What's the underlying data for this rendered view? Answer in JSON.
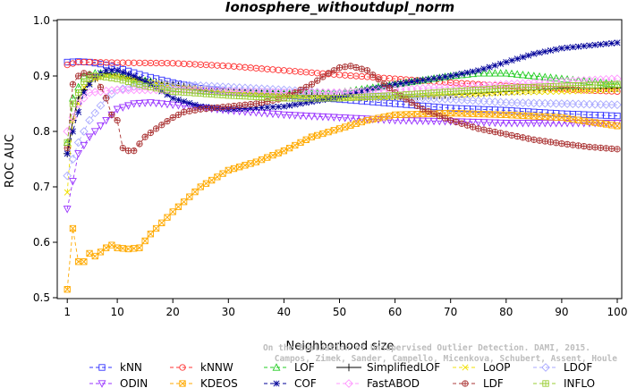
{
  "chart_data": {
    "type": "line",
    "title": "Ionosphere_withoutdupl_norm",
    "xlabel": "Neighborhood size",
    "ylabel": "ROC AUC",
    "xlim": [
      0,
      100
    ],
    "ylim": [
      0.5,
      1.0
    ],
    "xticks": [
      1,
      10,
      20,
      30,
      40,
      50,
      60,
      70,
      80,
      90,
      100
    ],
    "yticks": [
      0.5,
      0.6,
      0.7,
      0.8,
      0.9,
      1.0
    ],
    "x_tick_labels": [
      "1",
      "10",
      "20",
      "30",
      "40",
      "50",
      "60",
      "70",
      "80",
      "90",
      "100"
    ],
    "y_tick_labels": [
      "0.5",
      "0.6",
      "0.7",
      "0.8",
      "0.9",
      "1.0"
    ],
    "legend_position": "bottom",
    "watermark": [
      "Campos, Zimek, Sander, Campello, Micenkova, Schubert, Assent, Houle",
      "On the Evaluation of Unsupervised Outlier Detection. DAMI, 2015."
    ],
    "series": [
      {
        "name": "kNN",
        "color": "#3333ff",
        "dash": "dashed",
        "marker": "square",
        "points": [
          [
            1,
            0.925
          ],
          [
            3,
            0.926
          ],
          [
            5,
            0.925
          ],
          [
            8,
            0.92
          ],
          [
            10,
            0.915
          ],
          [
            15,
            0.9
          ],
          [
            20,
            0.888
          ],
          [
            25,
            0.878
          ],
          [
            30,
            0.872
          ],
          [
            40,
            0.865
          ],
          [
            50,
            0.858
          ],
          [
            60,
            0.85
          ],
          [
            70,
            0.842
          ],
          [
            80,
            0.838
          ],
          [
            90,
            0.832
          ],
          [
            100,
            0.828
          ]
        ]
      },
      {
        "name": "kNNW",
        "color": "#ff3333",
        "dash": "dashed",
        "marker": "circle",
        "points": [
          [
            1,
            0.92
          ],
          [
            3,
            0.925
          ],
          [
            5,
            0.925
          ],
          [
            10,
            0.924
          ],
          [
            20,
            0.923
          ],
          [
            30,
            0.918
          ],
          [
            40,
            0.91
          ],
          [
            50,
            0.902
          ],
          [
            60,
            0.895
          ],
          [
            70,
            0.888
          ],
          [
            80,
            0.882
          ],
          [
            90,
            0.876
          ],
          [
            100,
            0.872
          ]
        ]
      },
      {
        "name": "LOF",
        "color": "#22cc22",
        "dash": "dashed",
        "marker": "triangle-up",
        "points": [
          [
            1,
            0.78
          ],
          [
            2,
            0.86
          ],
          [
            4,
            0.9
          ],
          [
            6,
            0.905
          ],
          [
            8,
            0.905
          ],
          [
            10,
            0.905
          ],
          [
            13,
            0.895
          ],
          [
            16,
            0.89
          ],
          [
            20,
            0.878
          ],
          [
            25,
            0.873
          ],
          [
            30,
            0.87
          ],
          [
            40,
            0.868
          ],
          [
            50,
            0.87
          ],
          [
            60,
            0.885
          ],
          [
            70,
            0.9
          ],
          [
            75,
            0.905
          ],
          [
            80,
            0.905
          ],
          [
            90,
            0.895
          ],
          [
            100,
            0.885
          ]
        ]
      },
      {
        "name": "SimplifiedLOF",
        "color": "#000000",
        "dash": "solid",
        "marker": "plus",
        "points": [
          [
            1,
            0.76
          ],
          [
            2,
            0.82
          ],
          [
            3,
            0.86
          ],
          [
            5,
            0.89
          ],
          [
            8,
            0.905
          ],
          [
            10,
            0.9
          ],
          [
            15,
            0.89
          ],
          [
            20,
            0.885
          ],
          [
            25,
            0.875
          ],
          [
            30,
            0.87
          ],
          [
            40,
            0.866
          ],
          [
            50,
            0.862
          ],
          [
            60,
            0.862
          ],
          [
            70,
            0.866
          ],
          [
            80,
            0.872
          ],
          [
            90,
            0.878
          ],
          [
            100,
            0.878
          ]
        ]
      },
      {
        "name": "LoOP",
        "color": "#f0e000",
        "dash": "dashed",
        "marker": "x",
        "points": [
          [
            1,
            0.69
          ],
          [
            2,
            0.82
          ],
          [
            4,
            0.88
          ],
          [
            6,
            0.895
          ],
          [
            8,
            0.9
          ],
          [
            10,
            0.9
          ],
          [
            15,
            0.89
          ],
          [
            20,
            0.882
          ],
          [
            30,
            0.872
          ],
          [
            40,
            0.865
          ],
          [
            50,
            0.86
          ],
          [
            60,
            0.862
          ],
          [
            70,
            0.865
          ],
          [
            80,
            0.87
          ],
          [
            90,
            0.872
          ],
          [
            100,
            0.875
          ]
        ]
      },
      {
        "name": "LDOF",
        "color": "#aaaaff",
        "dash": "dashed",
        "marker": "diamond",
        "points": [
          [
            1,
            0.72
          ],
          [
            3,
            0.78
          ],
          [
            5,
            0.82
          ],
          [
            8,
            0.86
          ],
          [
            10,
            0.875
          ],
          [
            15,
            0.885
          ],
          [
            20,
            0.885
          ],
          [
            30,
            0.88
          ],
          [
            40,
            0.875
          ],
          [
            50,
            0.868
          ],
          [
            60,
            0.862
          ],
          [
            70,
            0.858
          ],
          [
            80,
            0.852
          ],
          [
            90,
            0.85
          ],
          [
            100,
            0.848
          ]
        ]
      },
      {
        "name": "ODIN",
        "color": "#9933ff",
        "dash": "dashed",
        "marker": "triangle-down",
        "points": [
          [
            1,
            0.66
          ],
          [
            2,
            0.71
          ],
          [
            3,
            0.76
          ],
          [
            5,
            0.79
          ],
          [
            8,
            0.82
          ],
          [
            10,
            0.84
          ],
          [
            13,
            0.85
          ],
          [
            16,
            0.852
          ],
          [
            20,
            0.848
          ],
          [
            30,
            0.838
          ],
          [
            40,
            0.83
          ],
          [
            50,
            0.825
          ],
          [
            60,
            0.82
          ],
          [
            70,
            0.818
          ],
          [
            80,
            0.815
          ],
          [
            90,
            0.815
          ],
          [
            100,
            0.815
          ]
        ]
      },
      {
        "name": "KDEOS",
        "color": "#ffaa00",
        "dash": "dashed",
        "marker": "square-x",
        "points": [
          [
            1,
            0.515
          ],
          [
            2,
            0.625
          ],
          [
            3,
            0.565
          ],
          [
            4,
            0.565
          ],
          [
            5,
            0.58
          ],
          [
            6,
            0.575
          ],
          [
            8,
            0.59
          ],
          [
            9,
            0.595
          ],
          [
            10,
            0.59
          ],
          [
            12,
            0.588
          ],
          [
            14,
            0.59
          ],
          [
            16,
            0.615
          ],
          [
            20,
            0.655
          ],
          [
            25,
            0.7
          ],
          [
            30,
            0.73
          ],
          [
            35,
            0.745
          ],
          [
            40,
            0.765
          ],
          [
            45,
            0.79
          ],
          [
            50,
            0.805
          ],
          [
            55,
            0.82
          ],
          [
            60,
            0.83
          ],
          [
            70,
            0.833
          ],
          [
            80,
            0.83
          ],
          [
            90,
            0.825
          ],
          [
            100,
            0.81
          ]
        ]
      },
      {
        "name": "COF",
        "color": "#000099",
        "dash": "dashed",
        "marker": "asterisk",
        "points": [
          [
            1,
            0.76
          ],
          [
            2,
            0.8
          ],
          [
            4,
            0.87
          ],
          [
            6,
            0.9
          ],
          [
            8,
            0.91
          ],
          [
            10,
            0.91
          ],
          [
            13,
            0.9
          ],
          [
            16,
            0.885
          ],
          [
            20,
            0.86
          ],
          [
            25,
            0.845
          ],
          [
            30,
            0.84
          ],
          [
            40,
            0.845
          ],
          [
            50,
            0.862
          ],
          [
            55,
            0.875
          ],
          [
            60,
            0.885
          ],
          [
            70,
            0.9
          ],
          [
            75,
            0.91
          ],
          [
            80,
            0.925
          ],
          [
            85,
            0.94
          ],
          [
            90,
            0.95
          ],
          [
            95,
            0.955
          ],
          [
            100,
            0.96
          ]
        ]
      },
      {
        "name": "FastABOD",
        "color": "#ff99ff",
        "dash": "dashed",
        "marker": "diamond",
        "points": [
          [
            1,
            0.8
          ],
          [
            3,
            0.85
          ],
          [
            5,
            0.87
          ],
          [
            10,
            0.875
          ],
          [
            20,
            0.875
          ],
          [
            30,
            0.872
          ],
          [
            40,
            0.87
          ],
          [
            50,
            0.87
          ],
          [
            60,
            0.875
          ],
          [
            70,
            0.88
          ],
          [
            80,
            0.885
          ],
          [
            90,
            0.89
          ],
          [
            100,
            0.895
          ]
        ]
      },
      {
        "name": "LDF",
        "color": "#aa3333",
        "dash": "dashed",
        "marker": "circle-plus",
        "points": [
          [
            1,
            0.77
          ],
          [
            2,
            0.885
          ],
          [
            3,
            0.9
          ],
          [
            4,
            0.905
          ],
          [
            6,
            0.9
          ],
          [
            8,
            0.86
          ],
          [
            9,
            0.83
          ],
          [
            10,
            0.82
          ],
          [
            11,
            0.77
          ],
          [
            12,
            0.765
          ],
          [
            13,
            0.765
          ],
          [
            15,
            0.79
          ],
          [
            17,
            0.805
          ],
          [
            20,
            0.825
          ],
          [
            22,
            0.835
          ],
          [
            25,
            0.84
          ],
          [
            30,
            0.845
          ],
          [
            35,
            0.85
          ],
          [
            40,
            0.86
          ],
          [
            45,
            0.885
          ],
          [
            48,
            0.905
          ],
          [
            50,
            0.915
          ],
          [
            52,
            0.918
          ],
          [
            55,
            0.91
          ],
          [
            60,
            0.87
          ],
          [
            65,
            0.84
          ],
          [
            70,
            0.82
          ],
          [
            75,
            0.805
          ],
          [
            80,
            0.795
          ],
          [
            85,
            0.785
          ],
          [
            90,
            0.778
          ],
          [
            95,
            0.772
          ],
          [
            100,
            0.768
          ]
        ]
      },
      {
        "name": "INFLO",
        "color": "#99cc33",
        "dash": "dashed",
        "marker": "square-plus",
        "points": [
          [
            1,
            0.78
          ],
          [
            2,
            0.85
          ],
          [
            4,
            0.89
          ],
          [
            6,
            0.9
          ],
          [
            8,
            0.898
          ],
          [
            10,
            0.895
          ],
          [
            15,
            0.882
          ],
          [
            20,
            0.872
          ],
          [
            30,
            0.865
          ],
          [
            40,
            0.86
          ],
          [
            50,
            0.86
          ],
          [
            60,
            0.865
          ],
          [
            70,
            0.872
          ],
          [
            80,
            0.878
          ],
          [
            90,
            0.882
          ],
          [
            100,
            0.885
          ]
        ]
      }
    ]
  }
}
